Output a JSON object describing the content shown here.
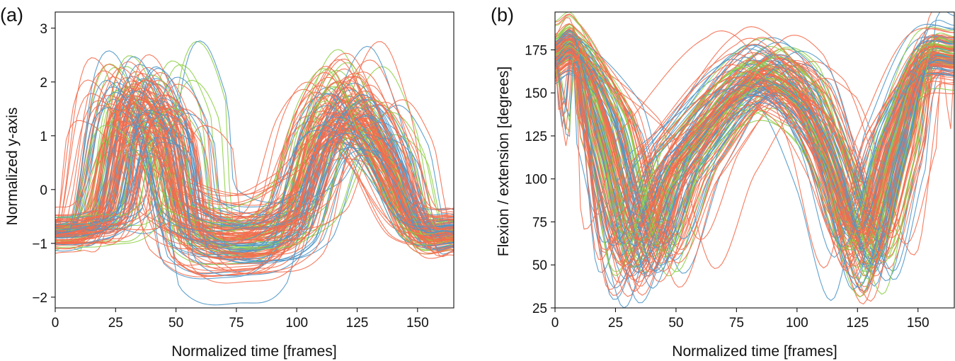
{
  "colors": {
    "series": [
      "#f46d4e",
      "#4f97c8",
      "#8ecf47"
    ],
    "axis": "#111111",
    "background": "#ffffff"
  },
  "chart_data": [
    {
      "panel_label": "(a)",
      "type": "line",
      "title": "",
      "xlabel": "Normalized time [frames]",
      "ylabel": "Normalized y-axis",
      "xlim": [
        0,
        165
      ],
      "ylim": [
        -2.2,
        3.3
      ],
      "xticks": [
        0,
        25,
        50,
        75,
        100,
        125,
        150
      ],
      "xtick_labels": [
        "0",
        "25",
        "50",
        "75",
        "100",
        "125",
        "150"
      ],
      "yticks": [
        -2,
        -1,
        0,
        1,
        2,
        3
      ],
      "ytick_labels": [
        "−2",
        "−1",
        "0",
        "1",
        "2",
        "3"
      ],
      "grid": false,
      "series_note": "~150 overlapping gait-cycle trajectories (orange, blue, green), baseline near -0.8, two peaks ~1.7 near frames ~40 and ~125",
      "curve_profile": {
        "start": -0.8,
        "valley_1": [
          15,
          -0.75
        ],
        "peak_1": [
          40,
          1.7
        ],
        "trough": [
          80,
          -0.9
        ],
        "peak_2": [
          124,
          1.6
        ],
        "end": [
          165,
          -0.8
        ]
      },
      "num_series": 150
    },
    {
      "panel_label": "(b)",
      "type": "line",
      "title": "",
      "xlabel": "Normalized time [frames]",
      "ylabel": "Flexion / extension [degrees]",
      "xlim": [
        0,
        165
      ],
      "ylim": [
        25,
        197
      ],
      "xticks": [
        0,
        25,
        50,
        75,
        100,
        125,
        150
      ],
      "xtick_labels": [
        "0",
        "25",
        "50",
        "75",
        "100",
        "125",
        "150"
      ],
      "yticks": [
        25,
        50,
        75,
        100,
        125,
        150,
        175
      ],
      "ytick_labels": [
        "25",
        "50",
        "75",
        "100",
        "125",
        "150",
        "175"
      ],
      "grid": false,
      "series_note": "~150 overlapping knee flexion/extension trajectories, start ~172, dips to ~60 near frames ~35 and ~125, peak ~160 near frame ~80",
      "curve_profile": {
        "start": 172,
        "min_1": [
          35,
          60
        ],
        "peak": [
          82,
          162
        ],
        "min_2": [
          128,
          62
        ],
        "end": [
          165,
          175
        ]
      },
      "num_series": 150
    }
  ]
}
